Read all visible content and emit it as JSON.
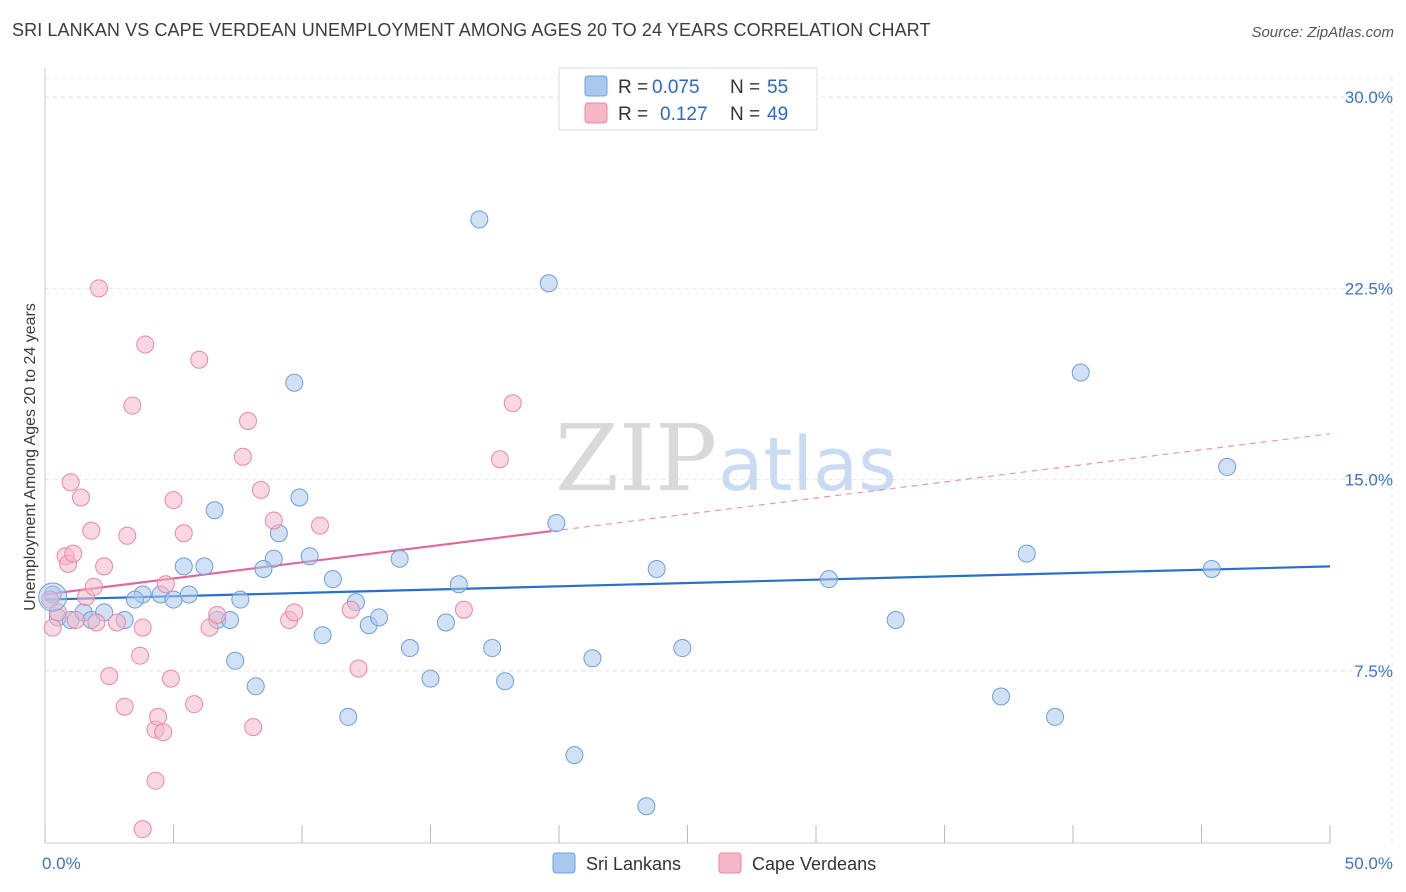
{
  "header": {
    "title": "SRI LANKAN VS CAPE VERDEAN UNEMPLOYMENT AMONG AGES 20 TO 24 YEARS CORRELATION CHART",
    "source": "Source: ZipAtlas.com"
  },
  "watermark": {
    "zip": "ZIP",
    "atlas": "atlas"
  },
  "legend": {
    "rows": [
      {
        "r_label": "R =",
        "r_value": "0.075",
        "n_label": "N =",
        "n_value": "55",
        "color": "#a9c8ef"
      },
      {
        "r_label": "R =",
        "r_value": "0.127",
        "n_label": "N =",
        "n_value": "49",
        "color": "#f5b6c8"
      }
    ]
  },
  "bottom_legend": {
    "items": [
      {
        "label": "Sri Lankans",
        "color": "#a9c8ef"
      },
      {
        "label": "Cape Verdeans",
        "color": "#f5b6c8"
      }
    ]
  },
  "chart_data": {
    "type": "scatter",
    "title": "SRI LANKAN VS CAPE VERDEAN UNEMPLOYMENT AMONG AGES 20 TO 24 YEARS CORRELATION CHART",
    "xlabel": "",
    "ylabel": "Unemployment Among Ages 20 to 24 years",
    "xlim": [
      0,
      50
    ],
    "ylim": [
      0,
      31
    ],
    "x_tick_labels": [
      "0.0%",
      "50.0%"
    ],
    "y_ticks": [
      7.5,
      15.0,
      22.5,
      30.0
    ],
    "y_tick_labels": [
      "7.5%",
      "15.0%",
      "22.5%",
      "30.0%"
    ],
    "grid": true,
    "series": [
      {
        "name": "Sri Lankans",
        "color": "#a9c8ef",
        "stroke": "#6f9fd8",
        "line_color": "#2a6fc9",
        "trend": {
          "x": [
            0,
            50
          ],
          "y": [
            10.3,
            11.6
          ]
        },
        "points": [
          [
            0.3,
            10.5
          ],
          [
            0.5,
            9.6
          ],
          [
            1.0,
            9.5
          ],
          [
            1.5,
            9.8
          ],
          [
            1.8,
            9.5
          ],
          [
            2.3,
            9.8
          ],
          [
            3.1,
            9.5
          ],
          [
            3.8,
            10.5
          ],
          [
            4.5,
            10.5
          ],
          [
            3.5,
            10.3
          ],
          [
            5.0,
            10.3
          ],
          [
            5.6,
            10.5
          ],
          [
            6.2,
            11.6
          ],
          [
            5.4,
            11.6
          ],
          [
            6.7,
            9.5
          ],
          [
            7.2,
            9.5
          ],
          [
            6.6,
            13.8
          ],
          [
            7.4,
            7.9
          ],
          [
            7.6,
            10.3
          ],
          [
            8.2,
            6.9
          ],
          [
            8.9,
            11.9
          ],
          [
            8.5,
            11.5
          ],
          [
            9.1,
            12.9
          ],
          [
            9.7,
            18.8
          ],
          [
            9.9,
            14.3
          ],
          [
            10.3,
            12.0
          ],
          [
            11.2,
            11.1
          ],
          [
            10.8,
            8.9
          ],
          [
            11.8,
            5.7
          ],
          [
            12.1,
            10.2
          ],
          [
            12.6,
            9.3
          ],
          [
            13.0,
            9.6
          ],
          [
            13.8,
            11.9
          ],
          [
            14.2,
            8.4
          ],
          [
            15.0,
            7.2
          ],
          [
            15.6,
            9.4
          ],
          [
            16.1,
            10.9
          ],
          [
            16.9,
            25.2
          ],
          [
            17.4,
            8.4
          ],
          [
            17.9,
            7.1
          ],
          [
            19.6,
            22.7
          ],
          [
            19.9,
            13.3
          ],
          [
            20.6,
            4.2
          ],
          [
            21.3,
            8.0
          ],
          [
            23.4,
            2.2
          ],
          [
            23.8,
            11.5
          ],
          [
            24.8,
            8.4
          ],
          [
            30.5,
            11.1
          ],
          [
            33.1,
            9.5
          ],
          [
            37.2,
            6.5
          ],
          [
            38.2,
            12.1
          ],
          [
            39.3,
            5.7
          ],
          [
            40.3,
            19.2
          ],
          [
            45.4,
            11.5
          ],
          [
            46.0,
            15.5
          ]
        ]
      },
      {
        "name": "Cape Verdeans",
        "color": "#f5b6c8",
        "stroke": "#e689a6",
        "line_color": "#e0679a",
        "trend": {
          "x": [
            0,
            50
          ],
          "y": [
            10.5,
            16.8
          ]
        },
        "trend_solid_until_x": 19.7,
        "points": [
          [
            0.2,
            10.3
          ],
          [
            0.3,
            9.2
          ],
          [
            0.5,
            9.8
          ],
          [
            0.8,
            12.0
          ],
          [
            0.9,
            11.7
          ],
          [
            1.0,
            14.9
          ],
          [
            1.1,
            12.1
          ],
          [
            1.2,
            9.5
          ],
          [
            1.4,
            14.3
          ],
          [
            1.6,
            10.4
          ],
          [
            1.8,
            13.0
          ],
          [
            1.9,
            10.8
          ],
          [
            2.0,
            9.4
          ],
          [
            2.3,
            11.6
          ],
          [
            2.1,
            22.5
          ],
          [
            2.5,
            7.3
          ],
          [
            2.8,
            9.4
          ],
          [
            3.1,
            6.1
          ],
          [
            3.2,
            12.8
          ],
          [
            3.4,
            17.9
          ],
          [
            3.7,
            8.1
          ],
          [
            3.8,
            9.2
          ],
          [
            3.8,
            1.3
          ],
          [
            3.9,
            20.3
          ],
          [
            4.3,
            5.2
          ],
          [
            4.3,
            3.2
          ],
          [
            4.4,
            5.7
          ],
          [
            4.6,
            5.1
          ],
          [
            4.7,
            10.9
          ],
          [
            4.9,
            7.2
          ],
          [
            5.0,
            14.2
          ],
          [
            5.4,
            12.9
          ],
          [
            5.8,
            6.2
          ],
          [
            6.0,
            19.7
          ],
          [
            6.4,
            9.2
          ],
          [
            6.7,
            9.7
          ],
          [
            7.7,
            15.9
          ],
          [
            7.9,
            17.3
          ],
          [
            8.1,
            5.3
          ],
          [
            8.4,
            14.6
          ],
          [
            8.9,
            13.4
          ],
          [
            9.5,
            9.5
          ],
          [
            9.7,
            9.8
          ],
          [
            10.7,
            13.2
          ],
          [
            11.9,
            9.9
          ],
          [
            12.2,
            7.6
          ],
          [
            16.3,
            9.9
          ],
          [
            17.7,
            15.8
          ],
          [
            18.2,
            18.0
          ]
        ]
      }
    ]
  }
}
